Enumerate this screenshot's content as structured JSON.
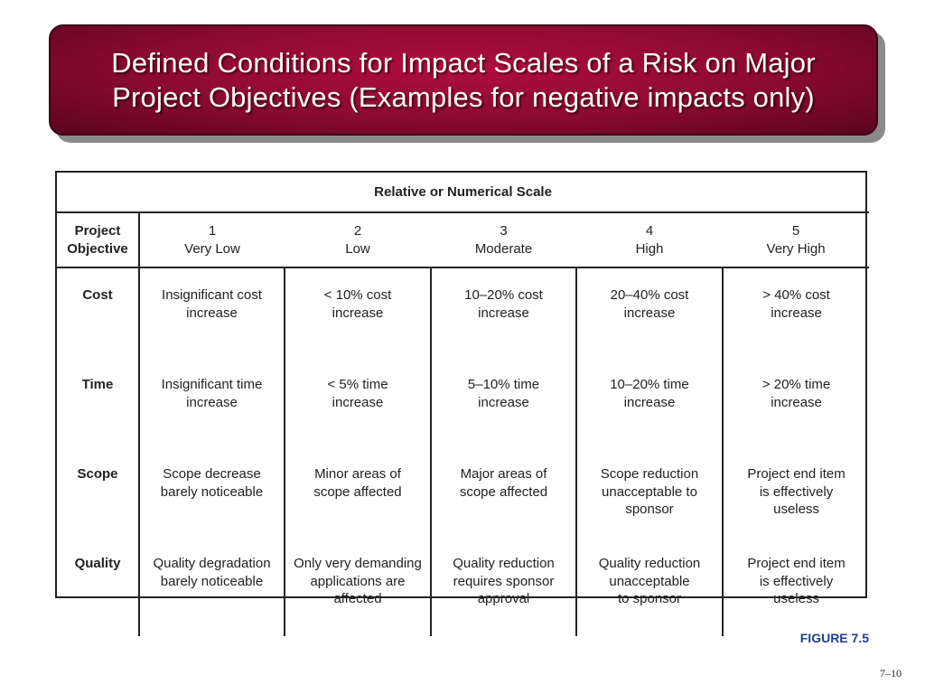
{
  "slide": {
    "title_line1": "Defined Conditions for Impact Scales of a Risk on Major",
    "title_line2": "Project Objectives (Examples for negative impacts only)",
    "figure_label": "FIGURE 7.5",
    "page_number": "7–10",
    "colors": {
      "title_bg": "#8a0a30",
      "figure_label": "#1f3f8f"
    }
  },
  "table": {
    "scale_header": "Relative or Numerical Scale",
    "objective_header": [
      "Project",
      "Objective"
    ],
    "levels": [
      {
        "num": "1",
        "label": "Very Low"
      },
      {
        "num": "2",
        "label": "Low"
      },
      {
        "num": "3",
        "label": "Moderate"
      },
      {
        "num": "4",
        "label": "High"
      },
      {
        "num": "5",
        "label": "Very High"
      }
    ],
    "rows": [
      {
        "objective": "Cost",
        "cells": [
          [
            "Insignificant cost",
            "increase"
          ],
          [
            "< 10% cost",
            "increase"
          ],
          [
            "10–20% cost",
            "increase"
          ],
          [
            "20–40% cost",
            "increase"
          ],
          [
            "> 40% cost",
            "increase"
          ]
        ]
      },
      {
        "objective": "Time",
        "cells": [
          [
            "Insignificant time",
            "increase"
          ],
          [
            "< 5% time",
            "increase"
          ],
          [
            "5–10% time",
            "increase"
          ],
          [
            "10–20% time",
            "increase"
          ],
          [
            "> 20% time",
            "increase"
          ]
        ]
      },
      {
        "objective": "Scope",
        "cells": [
          [
            "Scope decrease",
            "barely noticeable"
          ],
          [
            "Minor areas of",
            "scope affected"
          ],
          [
            "Major areas of",
            "scope affected"
          ],
          [
            "Scope reduction",
            "unacceptable to",
            "sponsor"
          ],
          [
            "Project end item",
            "is effectively",
            "useless"
          ]
        ]
      },
      {
        "objective": "Quality",
        "cells": [
          [
            "Quality degradation",
            "barely noticeable"
          ],
          [
            "Only very demanding",
            "applications are",
            "affected"
          ],
          [
            "Quality reduction",
            "requires sponsor",
            "approval"
          ],
          [
            "Quality reduction",
            "unacceptable",
            "to sponsor"
          ],
          [
            "Project end item",
            "is effectively",
            "useless"
          ]
        ]
      }
    ]
  }
}
